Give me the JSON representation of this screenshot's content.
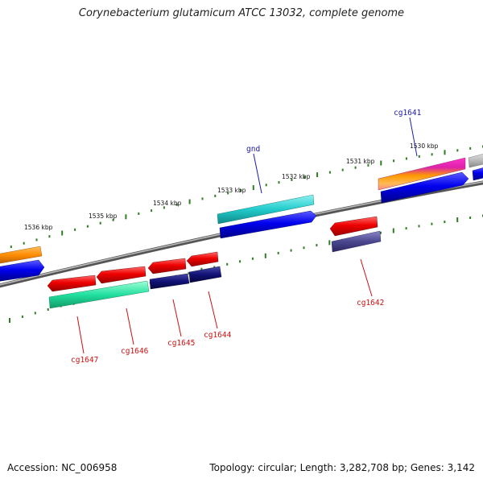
{
  "header": {
    "title": "Corynebacterium glutamicum ATCC 13032, complete genome"
  },
  "footer": {
    "accession": "Accession: NC_006958",
    "topology": "Topology: circular; Length: 3,282,708 bp; Genes: 3,142"
  },
  "map": {
    "backbone_color": "#888888",
    "tick_color": "#2e7d22",
    "kbp_labels": [
      "1536 kbp",
      "1535 kbp",
      "1534 kbp",
      "1533 kbp",
      "1532 kbp",
      "1531 kbp",
      "1530 kbp"
    ],
    "gene_labels": [
      {
        "text": "cg1641",
        "color": "#1a1aa8"
      },
      {
        "text": "gnd",
        "color": "#1a1aa8"
      },
      {
        "text": "cg1642",
        "color": "#cc1111"
      },
      {
        "text": "cg1644",
        "color": "#cc1111"
      },
      {
        "text": "cg1645",
        "color": "#cc1111"
      },
      {
        "text": "cg1646",
        "color": "#cc1111"
      },
      {
        "text": "cg1647",
        "color": "#cc1111"
      }
    ]
  }
}
